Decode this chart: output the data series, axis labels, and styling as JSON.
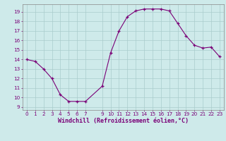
{
  "x": [
    0,
    1,
    2,
    3,
    4,
    5,
    6,
    7,
    9,
    10,
    11,
    12,
    13,
    14,
    15,
    16,
    17,
    18,
    19,
    20,
    21,
    22,
    23
  ],
  "y": [
    14.0,
    13.8,
    13.0,
    12.0,
    10.3,
    9.6,
    9.6,
    9.6,
    11.2,
    14.7,
    17.0,
    18.5,
    19.1,
    19.3,
    19.3,
    19.3,
    19.1,
    17.8,
    16.5,
    15.5,
    15.2,
    15.3,
    14.3
  ],
  "line_color": "#7a0077",
  "marker_color": "#7a0077",
  "bg_color": "#ceeaea",
  "grid_color": "#aacccc",
  "xlabel": "Windchill (Refroidissement éolien,°C)",
  "xlabel_color": "#7a0077",
  "ytick_color": "#7a0077",
  "xtick_color": "#7a0077",
  "ylim": [
    8.7,
    19.8
  ],
  "xlim": [
    -0.5,
    23.5
  ],
  "yticks": [
    9,
    10,
    11,
    12,
    13,
    14,
    15,
    16,
    17,
    18,
    19
  ],
  "xticks": [
    0,
    1,
    2,
    3,
    4,
    5,
    6,
    7,
    9,
    10,
    11,
    12,
    13,
    14,
    15,
    16,
    17,
    18,
    19,
    20,
    21,
    22,
    23
  ],
  "tick_label_fontsize": 5.2,
  "xlabel_fontsize": 6.0,
  "line_width": 0.8,
  "marker_size": 3.0
}
